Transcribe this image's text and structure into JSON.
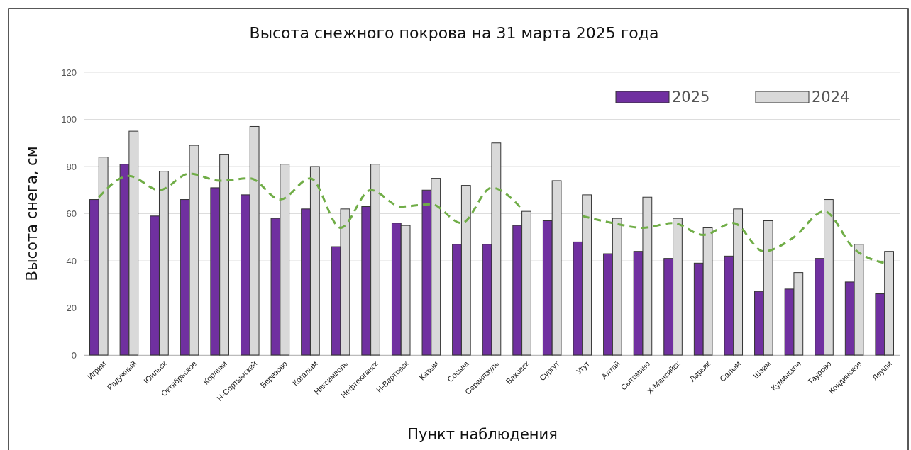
{
  "chart_data": {
    "type": "bar",
    "title": "Высота снежного покрова на 31 марта 2025 года",
    "xlabel": "Пункт наблюдения",
    "ylabel": "Высота снега, см",
    "categories": [
      "Игрим",
      "Радужный",
      "Юильск",
      "Октябрьское",
      "Корлики",
      "Н-Сортымский",
      "Березово",
      "Когалым",
      "Няксимволь",
      "Нефтеюганск",
      "Н-Вартовск",
      "Казым",
      "Сосьва",
      "Саранпауль",
      "Ваховск",
      "Сургут",
      "Угут",
      "Алтай",
      "Сытомино",
      "Х-Мансийск",
      "Ларьяк",
      "Салым",
      "Шаим",
      "Куминское",
      "Таурово",
      "Кондинское",
      "Леуши"
    ],
    "series": [
      {
        "name": "2025",
        "color": "#7030a0",
        "values": [
          66,
          81,
          59,
          66,
          71,
          68,
          58,
          62,
          46,
          63,
          56,
          70,
          47,
          47,
          55,
          57,
          48,
          43,
          44,
          41,
          39,
          42,
          27,
          28,
          41,
          31,
          26
        ]
      },
      {
        "name": "2024",
        "color": "#d9d9d9",
        "values": [
          84,
          95,
          78,
          89,
          85,
          97,
          81,
          80,
          62,
          81,
          55,
          75,
          72,
          90,
          61,
          74,
          68,
          58,
          67,
          58,
          54,
          62,
          57,
          35,
          66,
          47,
          44
        ]
      },
      {
        "type": "line",
        "color": "#70ad47",
        "line_style": "dashed",
        "marker": "none",
        "values": [
          67,
          76,
          70,
          77,
          74,
          75,
          66,
          75,
          54,
          70,
          63,
          64,
          56,
          71,
          62,
          null,
          59,
          56,
          54,
          56,
          51,
          56,
          44,
          50,
          61,
          45,
          39
        ]
      }
    ],
    "ylim": [
      0,
      120
    ],
    "yticks": [
      0,
      20,
      40,
      60,
      80,
      100,
      120
    ],
    "grid": "y",
    "legend": "top right"
  }
}
